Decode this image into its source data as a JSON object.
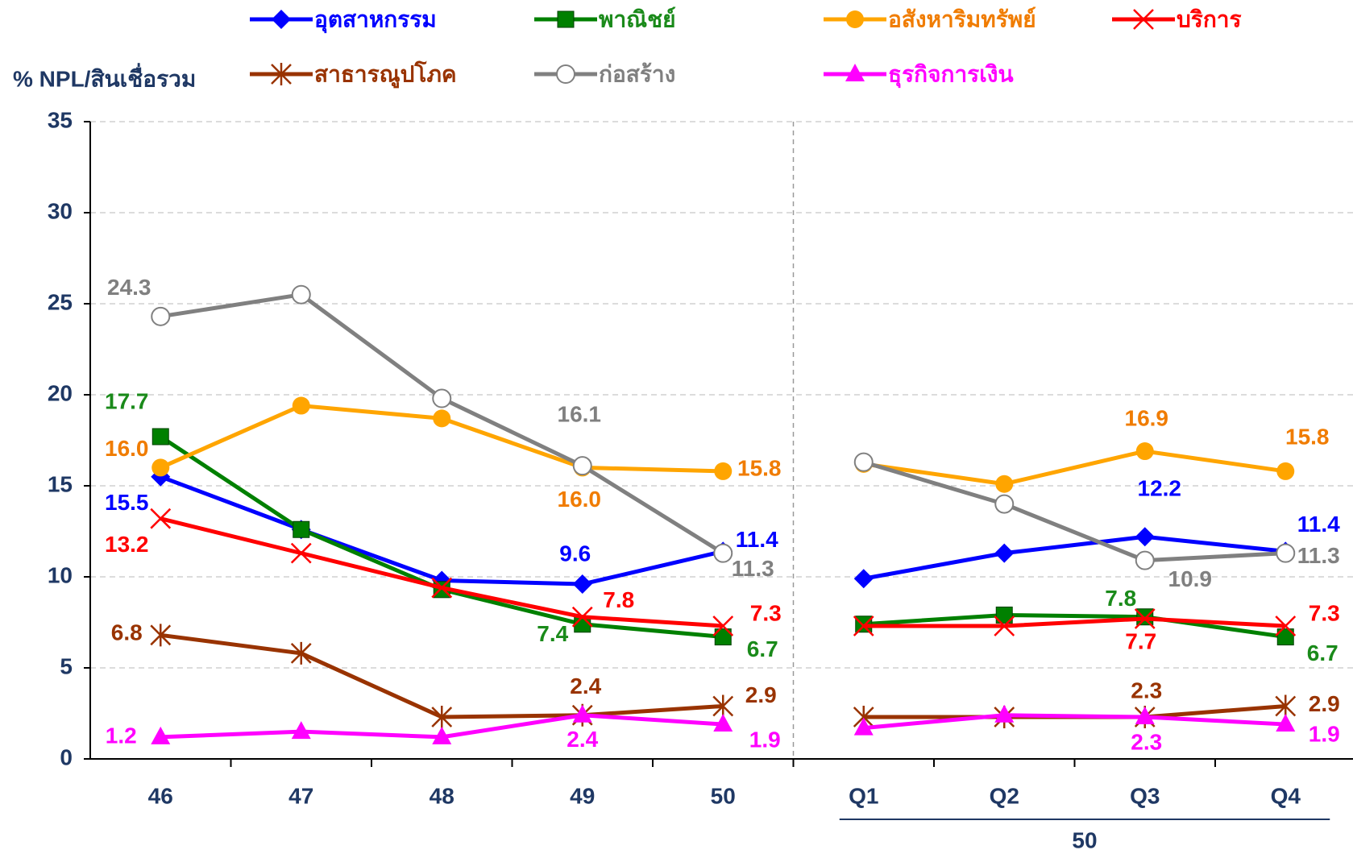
{
  "chart_data": {
    "type": "line",
    "y_label": "% NPL/สินเชื่อรวม",
    "categories": [
      "46",
      "47",
      "48",
      "49",
      "50",
      "Q1",
      "Q2",
      "Q3",
      "Q4"
    ],
    "group_label": "50",
    "break_after_index": 4,
    "ylim": [
      0,
      35
    ],
    "yticks": [
      0,
      5,
      10,
      15,
      20,
      25,
      30,
      35
    ],
    "grid": true,
    "series": [
      {
        "name": "อุตสาหกรรม",
        "color": "#0000ff",
        "label_color": "#0000ff",
        "marker": "diamond",
        "values": [
          15.5,
          12.6,
          9.8,
          9.6,
          11.4,
          9.9,
          11.3,
          12.2,
          11.4
        ],
        "value_labels": [
          "15.5",
          null,
          null,
          "9.6",
          "11.4",
          null,
          null,
          "12.2",
          "11.4"
        ]
      },
      {
        "name": "พาณิชย์",
        "color": "#008000",
        "label_color": "#1a8a1a",
        "marker": "square",
        "values": [
          17.7,
          12.6,
          9.3,
          7.4,
          6.7,
          7.4,
          7.9,
          7.8,
          6.7
        ],
        "value_labels": [
          "17.7",
          null,
          null,
          "7.4",
          "6.7",
          null,
          null,
          "7.8",
          "6.7"
        ]
      },
      {
        "name": "อสังหาริมทรัพย์",
        "color": "#ffa500",
        "label_color": "#f07c00",
        "marker": "circle",
        "values": [
          16.0,
          19.4,
          18.7,
          16.0,
          15.8,
          16.2,
          15.1,
          16.9,
          15.8
        ],
        "value_labels": [
          "16.0",
          null,
          null,
          "16.0",
          "15.8",
          null,
          null,
          "16.9",
          "15.8"
        ]
      },
      {
        "name": "บริการ",
        "color": "#ff0000",
        "label_color": "#ff0000",
        "marker": "x",
        "values": [
          13.2,
          11.3,
          9.4,
          7.8,
          7.3,
          7.3,
          7.3,
          7.7,
          7.3
        ],
        "value_labels": [
          "13.2",
          null,
          null,
          "7.8",
          "7.3",
          null,
          null,
          "7.7",
          "7.3"
        ]
      },
      {
        "name": "สาธารณูปโภค",
        "color": "#993300",
        "label_color": "#993300",
        "marker": "star",
        "values": [
          6.8,
          5.8,
          2.3,
          2.4,
          2.9,
          2.3,
          2.3,
          2.3,
          2.9
        ],
        "value_labels": [
          "6.8",
          null,
          null,
          "2.4",
          "2.9",
          null,
          null,
          "2.3",
          "2.9"
        ]
      },
      {
        "name": "ก่อสร้าง",
        "color": "#808080",
        "label_color": "#808080",
        "marker": "open-circle",
        "values": [
          24.3,
          25.5,
          19.8,
          16.1,
          11.3,
          16.3,
          14.0,
          10.9,
          11.3
        ],
        "value_labels": [
          "24.3",
          null,
          null,
          "16.1",
          "11.3",
          null,
          null,
          "10.9",
          "11.3"
        ]
      },
      {
        "name": "ธุรกิจการเงิน",
        "color": "#ff00ff",
        "label_color": "#ff00ff",
        "marker": "triangle",
        "values": [
          1.2,
          1.5,
          1.2,
          2.4,
          1.9,
          1.7,
          2.4,
          2.3,
          1.9
        ],
        "value_labels": [
          "1.2",
          null,
          null,
          "2.4",
          "1.9",
          null,
          null,
          "2.3",
          "1.9"
        ]
      }
    ]
  }
}
